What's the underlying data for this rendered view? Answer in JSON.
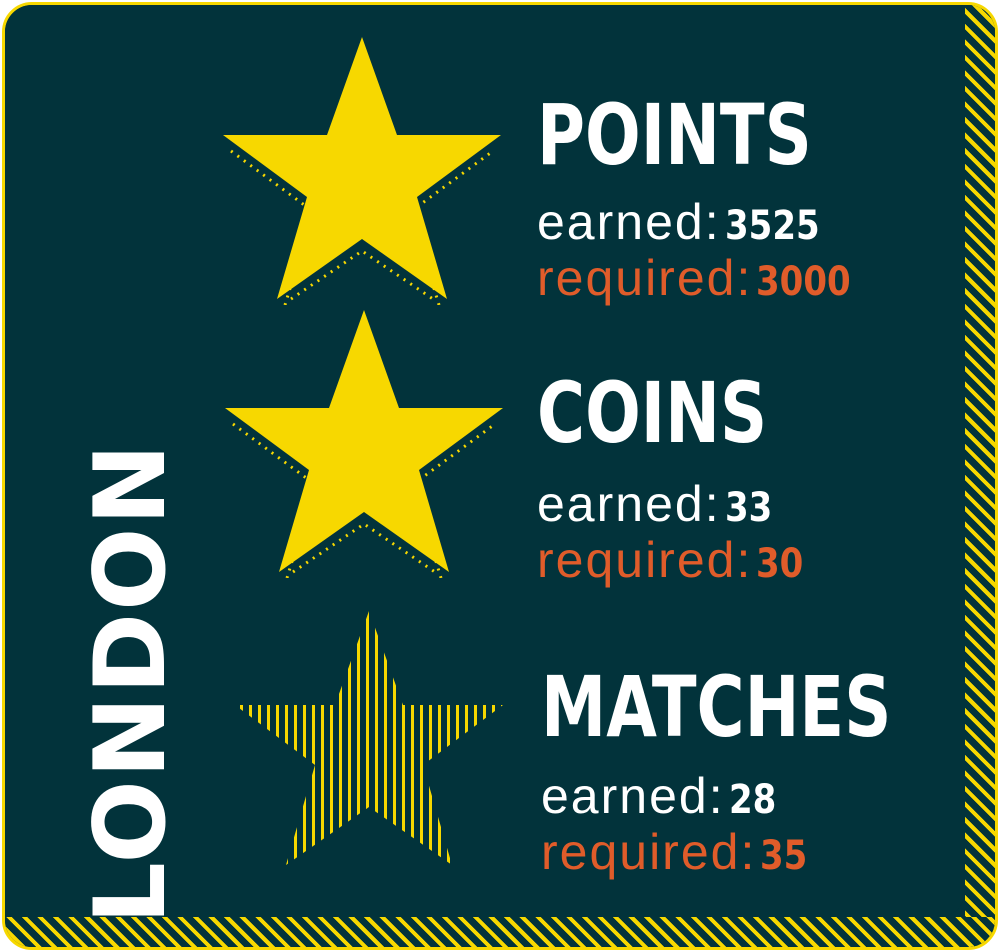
{
  "city": "LONDON",
  "labels": {
    "earned": "earned:",
    "required": "required:"
  },
  "colors": {
    "background": "#02333b",
    "accent": "#f7d800",
    "required": "#e05c2a",
    "text": "#ffffff"
  },
  "objectives": [
    {
      "title": "POINTS",
      "earned": "3525",
      "required": "3000",
      "star": "filled"
    },
    {
      "title": "COINS",
      "earned": "33",
      "required": "30",
      "star": "filled"
    },
    {
      "title": "MATCHES",
      "earned": "28",
      "required": "35",
      "star": "striped"
    }
  ]
}
